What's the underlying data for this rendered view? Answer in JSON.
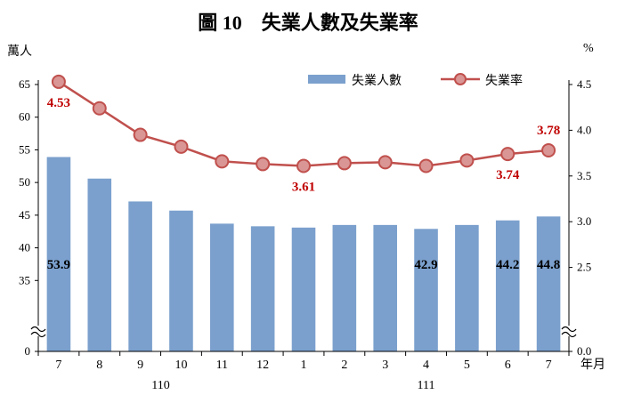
{
  "chart_data": {
    "type": "bar",
    "title": "圖 10　失業人數及失業率",
    "left_axis_unit": "萬人",
    "right_axis_unit": "%",
    "x_axis_unit": "年月",
    "categories": [
      "7",
      "8",
      "9",
      "10",
      "11",
      "12",
      "1",
      "2",
      "3",
      "4",
      "5",
      "6",
      "7"
    ],
    "year_groups": [
      {
        "label": "110",
        "from": 0,
        "to": 5
      },
      {
        "label": "111",
        "from": 6,
        "to": 12
      }
    ],
    "left_axis": {
      "ticks": [
        "0",
        "35",
        "40",
        "45",
        "50",
        "55",
        "60",
        "65"
      ],
      "ylim": [
        30,
        65
      ],
      "break": true
    },
    "right_axis": {
      "ticks": [
        "0.0",
        "2.5",
        "3.0",
        "3.5",
        "4.0",
        "4.5"
      ],
      "ylim": [
        2.0,
        4.5
      ],
      "break": true
    },
    "series": [
      {
        "name": "失業人數",
        "type": "bar",
        "axis": "left",
        "color": "#7ba0cd",
        "values": [
          53.9,
          50.6,
          47.1,
          45.7,
          43.7,
          43.3,
          43.1,
          43.5,
          43.5,
          42.9,
          43.5,
          44.2,
          44.8
        ],
        "labels": {
          "0": "53.9",
          "9": "42.9",
          "11": "44.2",
          "12": "44.8"
        }
      },
      {
        "name": "失業率",
        "type": "line",
        "axis": "right",
        "color": "#c0504d",
        "values": [
          4.53,
          4.24,
          3.95,
          3.82,
          3.66,
          3.63,
          3.61,
          3.64,
          3.65,
          3.61,
          3.67,
          3.74,
          3.78
        ],
        "labels": {
          "0": "4.53",
          "6": "3.61",
          "11": "3.74",
          "12": "3.78"
        }
      }
    ],
    "legend_position": "top-right",
    "grid": false
  }
}
